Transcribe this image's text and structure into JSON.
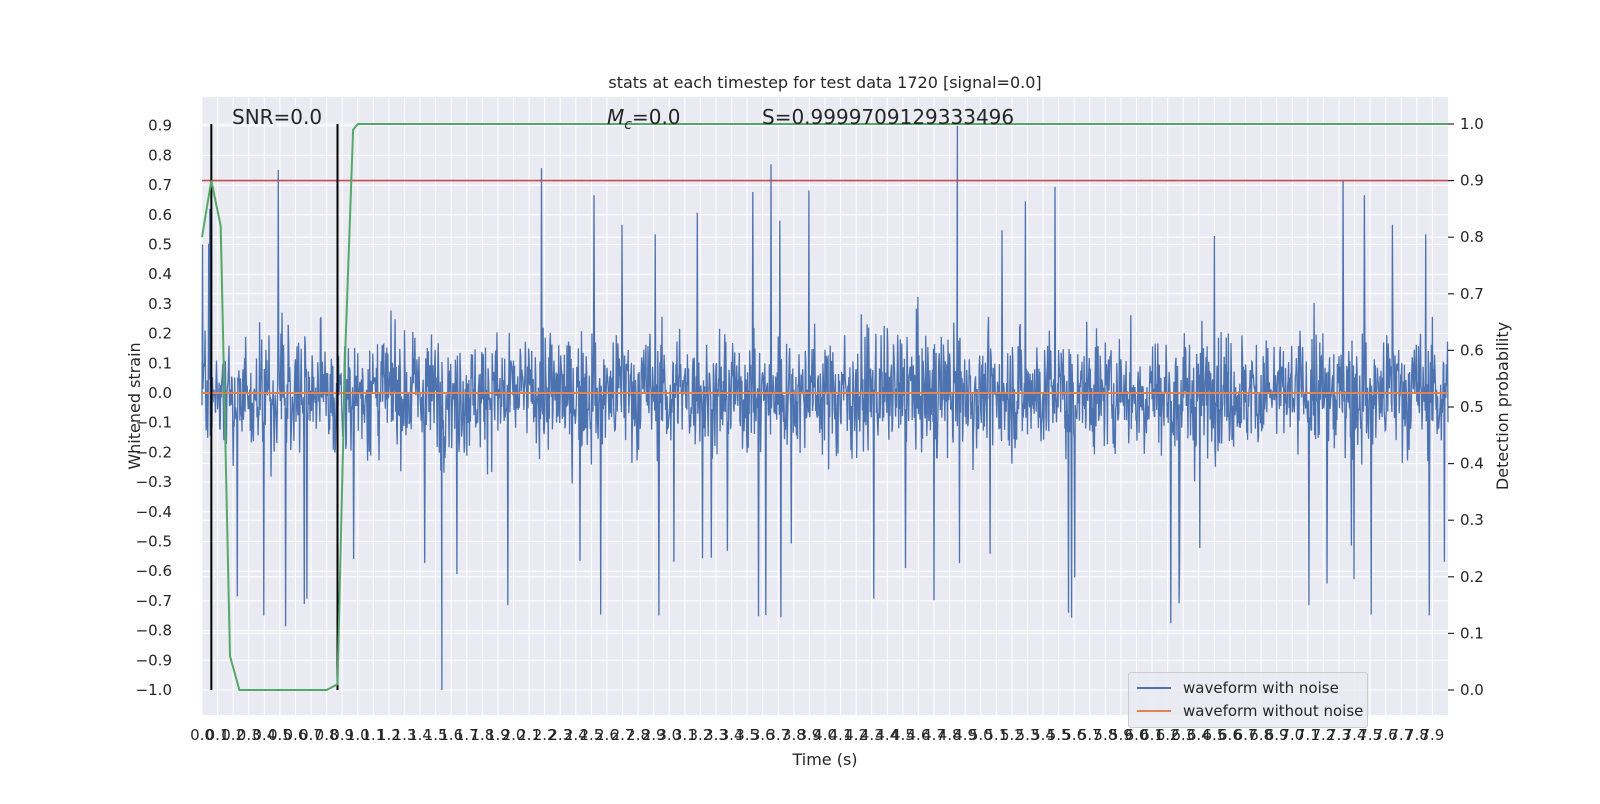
{
  "chart_data": {
    "type": "line",
    "title": "stats at each timestep for test data 1720 [signal=0.0]",
    "xlabel": "Time (s)",
    "ylabel": "Whitened strain",
    "y2label": "Detection probability",
    "xlim": [
      0.0,
      8.0
    ],
    "ylim": [
      -1.0,
      0.9
    ],
    "y2lim": [
      0.0,
      1.0
    ],
    "grid": true,
    "legend_position": "lower right",
    "xticks": [
      "0.0",
      "0.1",
      "0.2",
      "0.3",
      "0.4",
      "0.5",
      "0.6",
      "0.7",
      "0.8",
      "0.9",
      "1.0",
      "1.1",
      "1.2",
      "1.3",
      "1.4",
      "1.5",
      "1.6",
      "1.7",
      "1.8",
      "1.9",
      "2.0",
      "2.1",
      "2.2",
      "2.3",
      "2.4",
      "2.5",
      "2.6",
      "2.7",
      "2.8",
      "2.9",
      "3.0",
      "3.1",
      "3.2",
      "3.3",
      "3.4",
      "3.5",
      "3.6",
      "3.7",
      "3.8",
      "3.9",
      "4.0",
      "4.1",
      "4.2",
      "4.3",
      "4.4",
      "4.5",
      "4.6",
      "4.7",
      "4.8",
      "4.9",
      "5.0",
      "5.1",
      "5.2",
      "5.3",
      "5.4",
      "5.5",
      "5.6",
      "5.7",
      "5.8",
      "5.9",
      "6.0",
      "6.1",
      "6.2",
      "6.3",
      "6.4",
      "6.5",
      "6.6",
      "6.7",
      "6.8",
      "6.9",
      "7.0",
      "7.1",
      "7.2",
      "7.3",
      "7.4",
      "7.5",
      "7.6",
      "7.7",
      "7.8",
      "7.9"
    ],
    "yticks": [
      "0.9",
      "0.8",
      "0.7",
      "0.6",
      "0.5",
      "0.4",
      "0.3",
      "0.2",
      "0.1",
      "0.0",
      "−0.1",
      "−0.2",
      "−0.3",
      "−0.4",
      "−0.5",
      "−0.6",
      "−0.7",
      "−0.8",
      "−0.9",
      "−1.0"
    ],
    "y2ticks": [
      "1.0",
      "0.9",
      "0.8",
      "0.7",
      "0.6",
      "0.5",
      "0.4",
      "0.3",
      "0.2",
      "0.1",
      "0.0"
    ],
    "annotations": {
      "snr": "SNR=0.0",
      "mc_symbol": "M",
      "mc_subscript": "c",
      "mc_value": "=0.0",
      "s": "S=0.9999709129333496"
    },
    "noise_envelope": {
      "typical_abs_max": 0.45,
      "max_peak": 0.9,
      "min_peak": -1.0
    },
    "series": [
      {
        "name": "waveform with noise",
        "color": "#4c72b0"
      },
      {
        "name": "waveform without noise",
        "color": "#dd8452",
        "constant_value": 0.0
      }
    ],
    "detection_probability": {
      "color": "#55a868",
      "t": [
        0.0,
        0.06,
        0.12,
        0.18,
        0.24,
        0.3,
        0.5,
        0.8,
        0.87,
        0.92,
        0.97,
        1.0,
        1.05,
        8.0
      ],
      "p": [
        0.8,
        0.9,
        0.82,
        0.06,
        0.0,
        0.0,
        0.0,
        0.0,
        0.01,
        0.6,
        0.99,
        1.0,
        1.0,
        1.0
      ]
    },
    "threshold_line": {
      "value": 0.9,
      "axis": "y2",
      "color": "#c44e52"
    },
    "vertical_markers": {
      "t": [
        0.06,
        0.87
      ],
      "color": "#000000"
    }
  }
}
